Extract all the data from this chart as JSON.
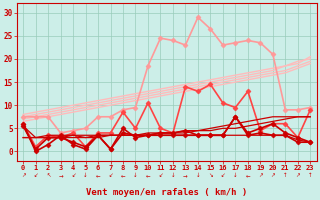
{
  "x": [
    0,
    1,
    2,
    3,
    4,
    5,
    6,
    7,
    8,
    9,
    10,
    11,
    12,
    13,
    14,
    15,
    16,
    17,
    18,
    19,
    20,
    21,
    22,
    23
  ],
  "bg_color": "#cceee8",
  "grid_color": "#99ccbb",
  "xlabel": "Vent moyen/en rafales ( km/h )",
  "ylim": [
    -2,
    32
  ],
  "xlim": [
    -0.5,
    23.5
  ],
  "yticks": [
    0,
    5,
    10,
    15,
    20,
    25,
    30
  ],
  "lines": [
    {
      "comment": "straight trend line 1 - lightest pink, from ~8 to ~21",
      "y": [
        8.0,
        8.5,
        9.0,
        9.5,
        10.0,
        10.5,
        11.0,
        11.5,
        12.0,
        12.5,
        13.0,
        13.5,
        14.0,
        14.5,
        15.0,
        15.5,
        16.0,
        16.5,
        17.0,
        17.5,
        18.0,
        18.5,
        19.0,
        20.5
      ],
      "color": "#ffbbbb",
      "lw": 1.0,
      "marker": null
    },
    {
      "comment": "straight trend line 2 - slightly different slope",
      "y": [
        7.5,
        8.0,
        8.5,
        9.0,
        9.5,
        10.0,
        10.5,
        11.0,
        11.5,
        12.0,
        12.5,
        13.0,
        13.5,
        14.0,
        14.5,
        15.0,
        15.5,
        16.0,
        16.5,
        17.0,
        17.5,
        18.5,
        19.5,
        20.0
      ],
      "color": "#ffbbbb",
      "lw": 1.0,
      "marker": null
    },
    {
      "comment": "straight trend line 3",
      "y": [
        7.0,
        7.5,
        8.0,
        8.5,
        9.0,
        9.5,
        10.0,
        10.5,
        11.0,
        11.5,
        12.0,
        12.5,
        13.0,
        13.5,
        14.0,
        14.5,
        15.0,
        15.5,
        16.0,
        16.5,
        17.0,
        17.5,
        18.5,
        19.5
      ],
      "color": "#ffbbbb",
      "lw": 1.0,
      "marker": null
    },
    {
      "comment": "straight trend line 4 - lowest",
      "y": [
        6.5,
        7.0,
        7.5,
        8.0,
        8.5,
        9.0,
        9.5,
        10.0,
        10.5,
        11.0,
        11.5,
        12.0,
        12.5,
        13.0,
        13.5,
        14.0,
        14.5,
        15.0,
        15.5,
        16.0,
        16.5,
        17.0,
        18.0,
        19.0
      ],
      "color": "#ffbbbb",
      "lw": 1.0,
      "marker": null
    },
    {
      "comment": "pink wavy line with markers - the one with big peak at x=14~15 up to ~29",
      "y": [
        7.5,
        7.5,
        7.5,
        4.0,
        4.5,
        5.0,
        7.5,
        7.5,
        9.0,
        9.5,
        18.5,
        24.5,
        24.0,
        23.0,
        29.0,
        26.5,
        23.0,
        23.5,
        24.0,
        23.5,
        21.0,
        9.0,
        9.0,
        9.5
      ],
      "color": "#ff9999",
      "lw": 1.2,
      "marker": "D",
      "markersize": 2.5
    },
    {
      "comment": "medium red wavy line - peaks around x=13~15 around 13-14",
      "y": [
        6.0,
        1.0,
        3.5,
        3.0,
        4.0,
        1.0,
        4.0,
        4.0,
        8.5,
        5.0,
        10.5,
        5.0,
        4.0,
        14.0,
        13.0,
        14.5,
        10.5,
        9.5,
        13.0,
        4.5,
        6.0,
        6.0,
        3.0,
        9.0
      ],
      "color": "#ff4444",
      "lw": 1.2,
      "marker": "D",
      "markersize": 2.5
    },
    {
      "comment": "lower red nearly flat line - slightly rising from ~3 to ~7.5 then flat",
      "y": [
        5.5,
        3.0,
        3.5,
        3.5,
        3.5,
        3.0,
        3.5,
        3.5,
        3.5,
        3.5,
        3.5,
        3.5,
        3.5,
        3.5,
        3.5,
        3.5,
        3.5,
        3.5,
        3.5,
        3.5,
        3.5,
        3.5,
        2.5,
        2.0
      ],
      "color": "#cc0000",
      "lw": 0.9,
      "marker": null
    },
    {
      "comment": "slightly rising dark red trend line",
      "y": [
        3.0,
        3.0,
        3.0,
        3.0,
        3.0,
        3.0,
        3.0,
        3.5,
        3.5,
        3.5,
        4.0,
        4.0,
        4.0,
        4.5,
        4.5,
        5.0,
        5.5,
        6.0,
        6.5,
        7.0,
        7.5,
        7.5,
        7.5,
        7.5
      ],
      "color": "#cc0000",
      "lw": 0.9,
      "marker": null
    },
    {
      "comment": "another slowly rising dark red line",
      "y": [
        3.0,
        3.0,
        3.0,
        3.0,
        3.5,
        3.5,
        3.5,
        3.5,
        3.5,
        3.5,
        3.5,
        4.0,
        4.0,
        4.0,
        4.5,
        4.5,
        5.0,
        5.0,
        5.5,
        6.0,
        6.5,
        7.0,
        7.5,
        7.5
      ],
      "color": "#cc0000",
      "lw": 0.9,
      "marker": null
    },
    {
      "comment": "dark red wavy low line with markers",
      "y": [
        5.5,
        0.5,
        3.0,
        3.0,
        2.0,
        1.0,
        3.5,
        0.5,
        4.0,
        3.5,
        3.5,
        3.5,
        3.5,
        3.5,
        3.5,
        3.5,
        3.5,
        7.5,
        3.5,
        4.0,
        3.5,
        3.5,
        2.0,
        2.0
      ],
      "color": "#cc0000",
      "lw": 1.2,
      "marker": "D",
      "markersize": 2.5
    },
    {
      "comment": "dark red line with markers - drops low at x=1,2",
      "y": [
        6.0,
        0.0,
        1.5,
        3.5,
        1.5,
        0.5,
        3.5,
        0.5,
        5.0,
        3.0,
        3.5,
        4.0,
        4.0,
        4.5,
        3.5,
        3.5,
        3.5,
        7.5,
        4.0,
        5.0,
        6.0,
        4.0,
        3.0,
        2.0
      ],
      "color": "#cc0000",
      "lw": 1.2,
      "marker": "D",
      "markersize": 2.5
    }
  ],
  "wind_symbols": [
    "↗",
    "↙",
    "↖",
    "→",
    "↙",
    "↓",
    "←",
    "↙",
    "←",
    "↓",
    "←",
    "↙",
    "↓",
    "→",
    "↓",
    "↘",
    "↙",
    "↓",
    "←",
    "↗",
    "↗",
    "↑",
    "↗",
    "↑"
  ],
  "axis_color": "#cc0000",
  "tick_color": "#cc0000",
  "label_color": "#cc0000"
}
